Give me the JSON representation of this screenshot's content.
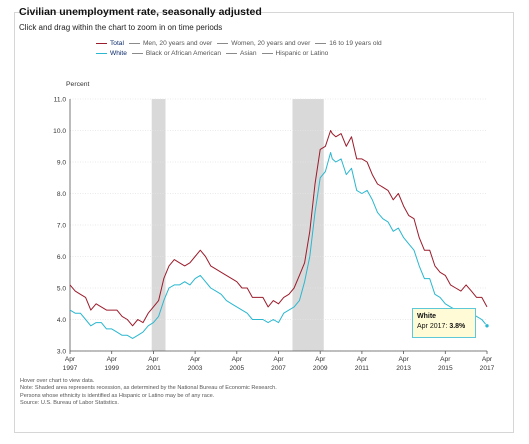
{
  "header": {
    "title": "Civilian unemployment rate, seasonally adjusted",
    "subtitle": "Click and drag within the chart to zoom in on time periods"
  },
  "legend": {
    "row1": [
      {
        "label": "Total",
        "color": "#9b1c2c",
        "active": true
      },
      {
        "label": "Men, 20 years and over",
        "color": "#8a8a8a",
        "active": false
      },
      {
        "label": "Women, 20 years and over",
        "color": "#8a8a8a",
        "active": false
      },
      {
        "label": "16 to 19 years old",
        "color": "#8a8a8a",
        "active": false
      }
    ],
    "row2": [
      {
        "label": "White",
        "color": "#2ab7cf",
        "active": true
      },
      {
        "label": "Black or African American",
        "color": "#8a8a8a",
        "active": false
      },
      {
        "label": "Asian",
        "color": "#8a8a8a",
        "active": false
      },
      {
        "label": "Hispanic or Latino",
        "color": "#8a8a8a",
        "active": false
      }
    ]
  },
  "tooltip": {
    "series": "White",
    "label": "Apr 2017:",
    "value": "3.8%"
  },
  "notes": {
    "line1": "Hover over chart to view data.",
    "line2": "Note: Shaded area represents recession, as determined by the National Bureau of Economic Research.",
    "line3": "Persons whose ethnicity is identified as Hispanic or Latino may be of any race.",
    "line4": "Source: U.S. Bureau of Labor Statistics."
  },
  "chart_data": {
    "type": "line",
    "title": "Civilian unemployment rate, seasonally adjusted",
    "ylabel": "Percent",
    "xlabel": "",
    "ylim": [
      3.0,
      11.0
    ],
    "xlim": [
      1997.25,
      2017.25
    ],
    "y_ticks": [
      "3.0",
      "4.0",
      "5.0",
      "6.0",
      "7.0",
      "8.0",
      "9.0",
      "10.0",
      "11.0"
    ],
    "x_ticks": [
      {
        "month": "Apr",
        "year": "1997",
        "x": 1997.25
      },
      {
        "month": "Apr",
        "year": "1999",
        "x": 1999.25
      },
      {
        "month": "Apr",
        "year": "2001",
        "x": 2001.25
      },
      {
        "month": "Apr",
        "year": "2003",
        "x": 2003.25
      },
      {
        "month": "Apr",
        "year": "2005",
        "x": 2005.25
      },
      {
        "month": "Apr",
        "year": "2007",
        "x": 2007.25
      },
      {
        "month": "Apr",
        "year": "2009",
        "x": 2009.25
      },
      {
        "month": "Apr",
        "year": "2011",
        "x": 2011.25
      },
      {
        "month": "Apr",
        "year": "2013",
        "x": 2013.25
      },
      {
        "month": "Apr",
        "year": "2015",
        "x": 2015.25
      },
      {
        "month": "Apr",
        "year": "2017",
        "x": 2017.25
      }
    ],
    "grid": true,
    "recessions": [
      {
        "start": 2001.17,
        "end": 2001.83
      },
      {
        "start": 2007.92,
        "end": 2009.42
      }
    ],
    "series": [
      {
        "name": "Total",
        "color": "#9b1c2c",
        "x": [
          1997.25,
          1997.5,
          1997.75,
          1998.0,
          1998.25,
          1998.5,
          1998.75,
          1999.0,
          1999.25,
          1999.5,
          1999.75,
          2000.0,
          2000.25,
          2000.5,
          2000.75,
          2001.0,
          2001.25,
          2001.5,
          2001.75,
          2002.0,
          2002.25,
          2002.5,
          2002.75,
          2003.0,
          2003.25,
          2003.5,
          2003.75,
          2004.0,
          2004.25,
          2004.5,
          2004.75,
          2005.0,
          2005.25,
          2005.5,
          2005.75,
          2006.0,
          2006.25,
          2006.5,
          2006.75,
          2007.0,
          2007.25,
          2007.5,
          2007.75,
          2008.0,
          2008.25,
          2008.5,
          2008.75,
          2009.0,
          2009.25,
          2009.5,
          2009.75,
          2009.83,
          2010.0,
          2010.25,
          2010.5,
          2010.75,
          2011.0,
          2011.25,
          2011.5,
          2011.75,
          2012.0,
          2012.25,
          2012.5,
          2012.75,
          2013.0,
          2013.25,
          2013.5,
          2013.75,
          2014.0,
          2014.25,
          2014.5,
          2014.75,
          2015.0,
          2015.25,
          2015.5,
          2015.75,
          2016.0,
          2016.25,
          2016.5,
          2016.75,
          2017.0,
          2017.25
        ],
        "y": [
          5.1,
          4.9,
          4.8,
          4.7,
          4.3,
          4.5,
          4.4,
          4.3,
          4.3,
          4.3,
          4.1,
          4.0,
          3.8,
          4.0,
          3.9,
          4.2,
          4.4,
          4.6,
          5.3,
          5.7,
          5.9,
          5.8,
          5.7,
          5.8,
          6.0,
          6.2,
          6.0,
          5.7,
          5.6,
          5.5,
          5.4,
          5.3,
          5.2,
          5.0,
          5.0,
          4.7,
          4.7,
          4.7,
          4.4,
          4.6,
          4.5,
          4.7,
          4.8,
          5.0,
          5.4,
          5.8,
          6.8,
          8.3,
          9.4,
          9.5,
          10.0,
          9.9,
          9.8,
          9.9,
          9.5,
          9.8,
          9.1,
          9.1,
          9.0,
          8.6,
          8.3,
          8.2,
          8.1,
          7.8,
          8.0,
          7.6,
          7.3,
          7.2,
          6.6,
          6.2,
          6.2,
          5.7,
          5.5,
          5.4,
          5.1,
          5.0,
          4.9,
          5.1,
          4.9,
          4.7,
          4.7,
          4.4
        ]
      },
      {
        "name": "White",
        "color": "#2ab7cf",
        "x": [
          1997.25,
          1997.5,
          1997.75,
          1998.0,
          1998.25,
          1998.5,
          1998.75,
          1999.0,
          1999.25,
          1999.5,
          1999.75,
          2000.0,
          2000.25,
          2000.5,
          2000.75,
          2001.0,
          2001.25,
          2001.5,
          2001.75,
          2002.0,
          2002.25,
          2002.5,
          2002.75,
          2003.0,
          2003.25,
          2003.5,
          2003.75,
          2004.0,
          2004.25,
          2004.5,
          2004.75,
          2005.0,
          2005.25,
          2005.5,
          2005.75,
          2006.0,
          2006.25,
          2006.5,
          2006.75,
          2007.0,
          2007.25,
          2007.5,
          2007.75,
          2008.0,
          2008.25,
          2008.5,
          2008.75,
          2009.0,
          2009.25,
          2009.5,
          2009.75,
          2009.83,
          2010.0,
          2010.25,
          2010.5,
          2010.75,
          2011.0,
          2011.25,
          2011.5,
          2011.75,
          2012.0,
          2012.25,
          2012.5,
          2012.75,
          2013.0,
          2013.25,
          2013.5,
          2013.75,
          2014.0,
          2014.25,
          2014.5,
          2014.75,
          2015.0,
          2015.25,
          2015.5,
          2015.75,
          2016.0,
          2016.25,
          2016.5,
          2016.75,
          2017.0,
          2017.25
        ],
        "y": [
          4.3,
          4.2,
          4.2,
          4.0,
          3.8,
          3.9,
          3.9,
          3.7,
          3.7,
          3.6,
          3.5,
          3.5,
          3.4,
          3.5,
          3.6,
          3.8,
          3.9,
          4.1,
          4.6,
          5.0,
          5.1,
          5.1,
          5.2,
          5.1,
          5.3,
          5.4,
          5.2,
          5.0,
          4.9,
          4.8,
          4.6,
          4.5,
          4.4,
          4.3,
          4.2,
          4.0,
          4.0,
          4.0,
          3.9,
          4.0,
          3.9,
          4.2,
          4.3,
          4.4,
          4.6,
          5.2,
          6.0,
          7.4,
          8.5,
          8.7,
          9.3,
          9.1,
          9.0,
          9.1,
          8.6,
          8.8,
          8.1,
          8.0,
          8.1,
          7.8,
          7.4,
          7.2,
          7.1,
          6.8,
          6.9,
          6.6,
          6.4,
          6.2,
          5.7,
          5.3,
          5.3,
          4.8,
          4.7,
          4.5,
          4.4,
          4.3,
          4.3,
          4.3,
          4.2,
          4.1,
          4.0,
          3.8
        ]
      }
    ]
  }
}
